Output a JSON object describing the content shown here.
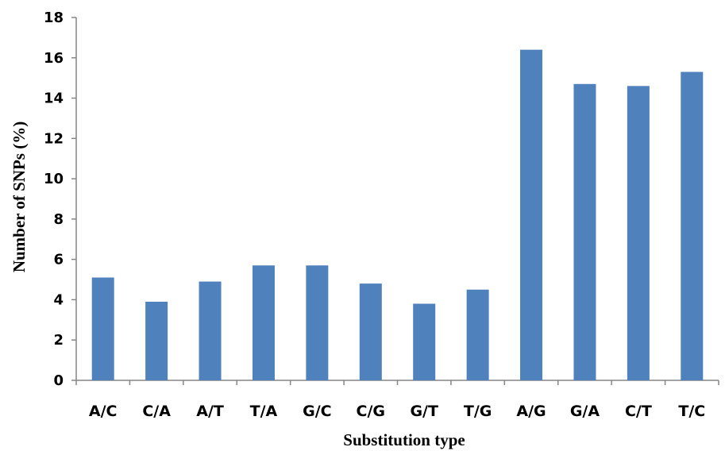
{
  "chart_data": {
    "type": "bar",
    "title": "",
    "xlabel": "Substitution type",
    "ylabel": "Number of SNPs (%)",
    "categories": [
      "A/C",
      "C/A",
      "A/T",
      "T/A",
      "G/C",
      "C/G",
      "G/T",
      "T/G",
      "A/G",
      "G/A",
      "C/T",
      "T/C"
    ],
    "values": [
      5.1,
      3.9,
      4.9,
      5.7,
      5.7,
      4.8,
      3.8,
      4.5,
      16.4,
      14.7,
      14.6,
      15.3
    ],
    "ylim": [
      0,
      18
    ],
    "yticks": [
      "0",
      "2",
      "4",
      "6",
      "8",
      "10",
      "12",
      "14",
      "16",
      "18"
    ],
    "grid": false,
    "legend": "none",
    "bar_color": "#4f81bd"
  }
}
